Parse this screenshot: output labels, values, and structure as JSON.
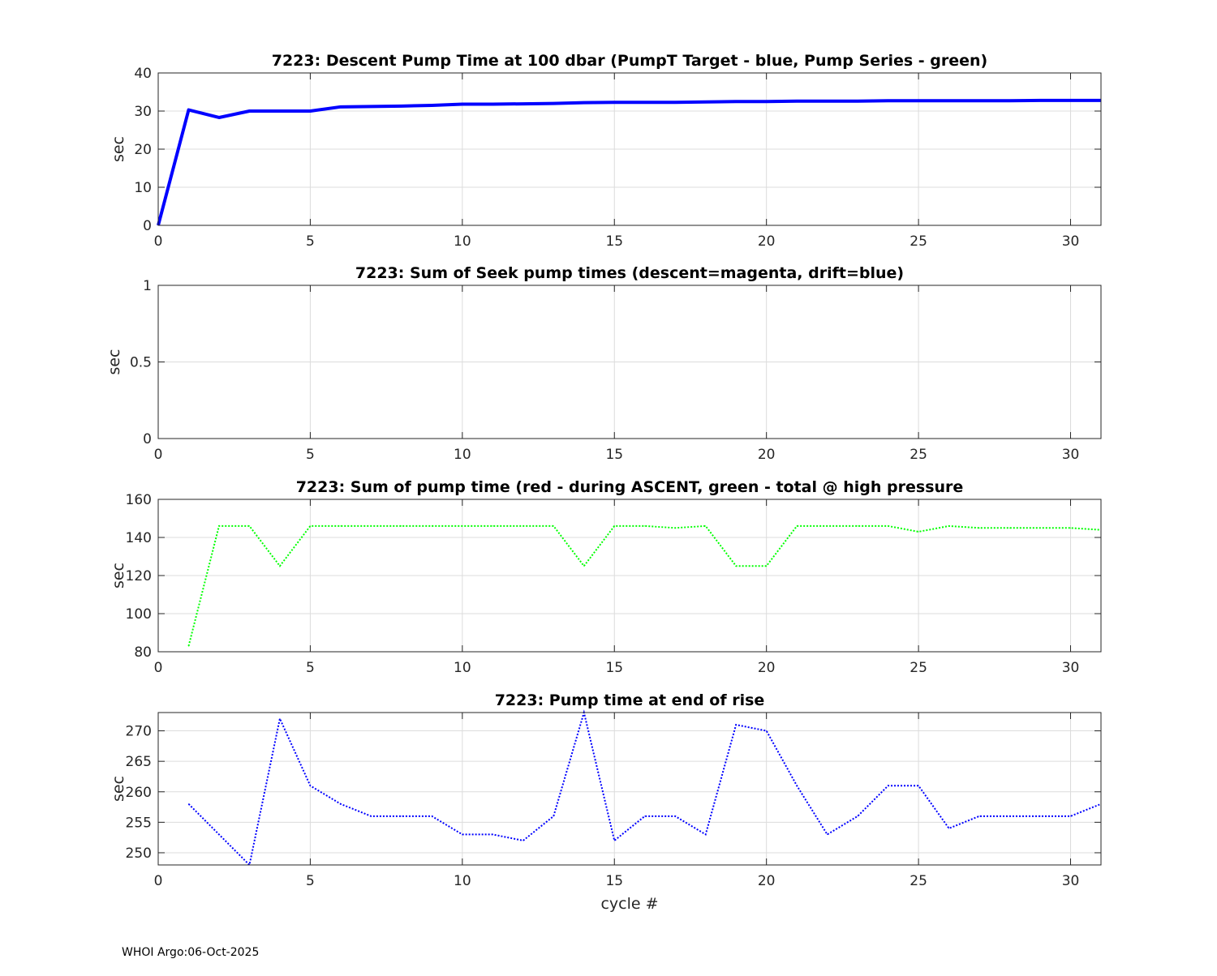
{
  "footer": "WHOI Argo:06-Oct-2025",
  "chart_data": [
    {
      "type": "line",
      "title": "7223: Descent Pump Time at 100 dbar (PumpT Target - blue, Pump Series - green)",
      "xlabel": "",
      "ylabel": "sec",
      "xlim": [
        0,
        31
      ],
      "ylim": [
        0,
        40
      ],
      "yticks": [
        0,
        10,
        20,
        30,
        40
      ],
      "xticks": [
        0,
        5,
        10,
        15,
        20,
        25,
        30
      ],
      "grid": true,
      "series": [
        {
          "name": "PumpT Target",
          "color": "#0000ff",
          "style": "solid-thick",
          "x": [
            0,
            1,
            2,
            3,
            4,
            5,
            6,
            7,
            8,
            9,
            10,
            11,
            12,
            13,
            14,
            15,
            16,
            17,
            18,
            19,
            20,
            21,
            22,
            23,
            24,
            25,
            26,
            27,
            28,
            29,
            30,
            31
          ],
          "y": [
            0,
            30.3,
            28.3,
            30,
            30,
            30,
            31.1,
            31.2,
            31.3,
            31.5,
            31.8,
            31.8,
            31.9,
            32,
            32.2,
            32.3,
            32.3,
            32.3,
            32.4,
            32.5,
            32.5,
            32.6,
            32.6,
            32.6,
            32.7,
            32.7,
            32.7,
            32.7,
            32.7,
            32.8,
            32.8,
            32.8
          ]
        }
      ]
    },
    {
      "type": "line",
      "title": "7223: Sum of Seek pump times (descent=magenta, drift=blue)",
      "xlabel": "",
      "ylabel": "sec",
      "xlim": [
        0,
        31
      ],
      "ylim": [
        0,
        1
      ],
      "yticks": [
        0,
        0.5,
        1
      ],
      "xticks": [
        0,
        5,
        10,
        15,
        20,
        25,
        30
      ],
      "grid": true,
      "series": []
    },
    {
      "type": "line",
      "title": "7223: Sum of pump time (red - during ASCENT, green - total @ high pressure",
      "xlabel": "",
      "ylabel": "sec",
      "xlim": [
        0,
        31
      ],
      "ylim": [
        80,
        160
      ],
      "yticks": [
        80,
        100,
        120,
        140,
        160
      ],
      "xticks": [
        0,
        5,
        10,
        15,
        20,
        25,
        30
      ],
      "grid": true,
      "series": [
        {
          "name": "total @ high pressure",
          "color": "#00ff00",
          "style": "dotted",
          "x": [
            1,
            2,
            3,
            4,
            5,
            6,
            7,
            8,
            9,
            10,
            11,
            12,
            13,
            14,
            15,
            16,
            17,
            18,
            19,
            20,
            21,
            22,
            23,
            24,
            25,
            26,
            27,
            28,
            29,
            30,
            31
          ],
          "y": [
            83,
            146,
            146,
            125,
            146,
            146,
            146,
            146,
            146,
            146,
            146,
            146,
            146,
            125,
            146,
            146,
            145,
            146,
            125,
            125,
            146,
            146,
            146,
            146,
            143,
            146,
            145,
            145,
            145,
            145,
            144
          ]
        }
      ]
    },
    {
      "type": "line",
      "title": "7223: Pump time at end of rise",
      "xlabel": "cycle #",
      "ylabel": "sec",
      "xlim": [
        0,
        31
      ],
      "ylim": [
        248,
        273
      ],
      "yticks": [
        250,
        255,
        260,
        265,
        270
      ],
      "xticks": [
        0,
        5,
        10,
        15,
        20,
        25,
        30
      ],
      "grid": true,
      "series": [
        {
          "name": "end of rise",
          "color": "#0000ff",
          "style": "dotted",
          "x": [
            1,
            2,
            3,
            4,
            5,
            6,
            7,
            8,
            9,
            10,
            11,
            12,
            13,
            14,
            15,
            16,
            17,
            18,
            19,
            20,
            21,
            22,
            23,
            24,
            25,
            26,
            27,
            28,
            29,
            30,
            31
          ],
          "y": [
            258,
            253,
            248,
            272,
            261,
            258,
            256,
            256,
            256,
            253,
            253,
            252,
            256,
            273,
            252,
            256,
            256,
            253,
            271,
            270,
            261,
            253,
            256,
            261,
            261,
            254,
            256,
            256,
            256,
            256,
            258
          ]
        }
      ]
    }
  ]
}
